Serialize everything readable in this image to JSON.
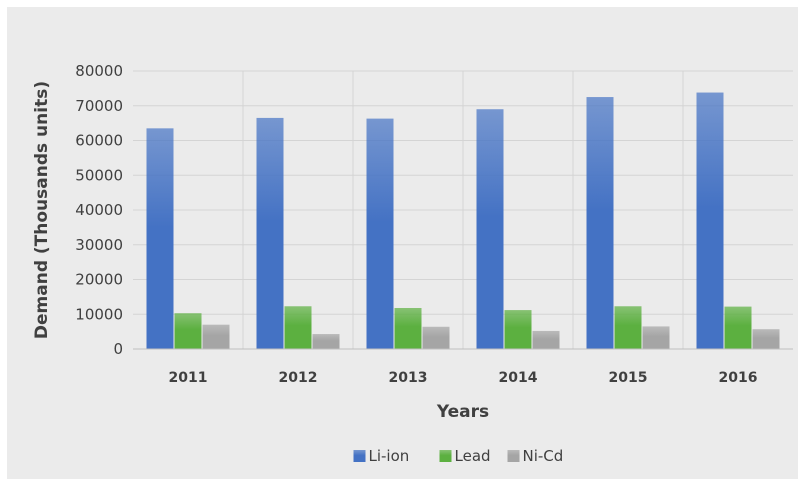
{
  "chart_data": {
    "type": "bar",
    "title": "",
    "xlabel": "Years",
    "ylabel": "Demand (Thousands units)",
    "categories": [
      "2011",
      "2012",
      "2013",
      "2014",
      "2015",
      "2016"
    ],
    "ylim": [
      0,
      80000
    ],
    "yticks": [
      0,
      10000,
      20000,
      30000,
      40000,
      50000,
      60000,
      70000,
      80000
    ],
    "grid": true,
    "legend_position": "bottom",
    "series": [
      {
        "name": "Li-ion",
        "color": "#4472c4",
        "values": [
          63500,
          66500,
          66300,
          69000,
          72500,
          73800
        ]
      },
      {
        "name": "Lead",
        "color": "#5cb040",
        "values": [
          10300,
          12300,
          11800,
          11200,
          12300,
          12200
        ]
      },
      {
        "name": "Ni-Cd",
        "color": "#a5a5a5",
        "values": [
          7000,
          4300,
          6400,
          5200,
          6500,
          5700
        ]
      }
    ]
  }
}
